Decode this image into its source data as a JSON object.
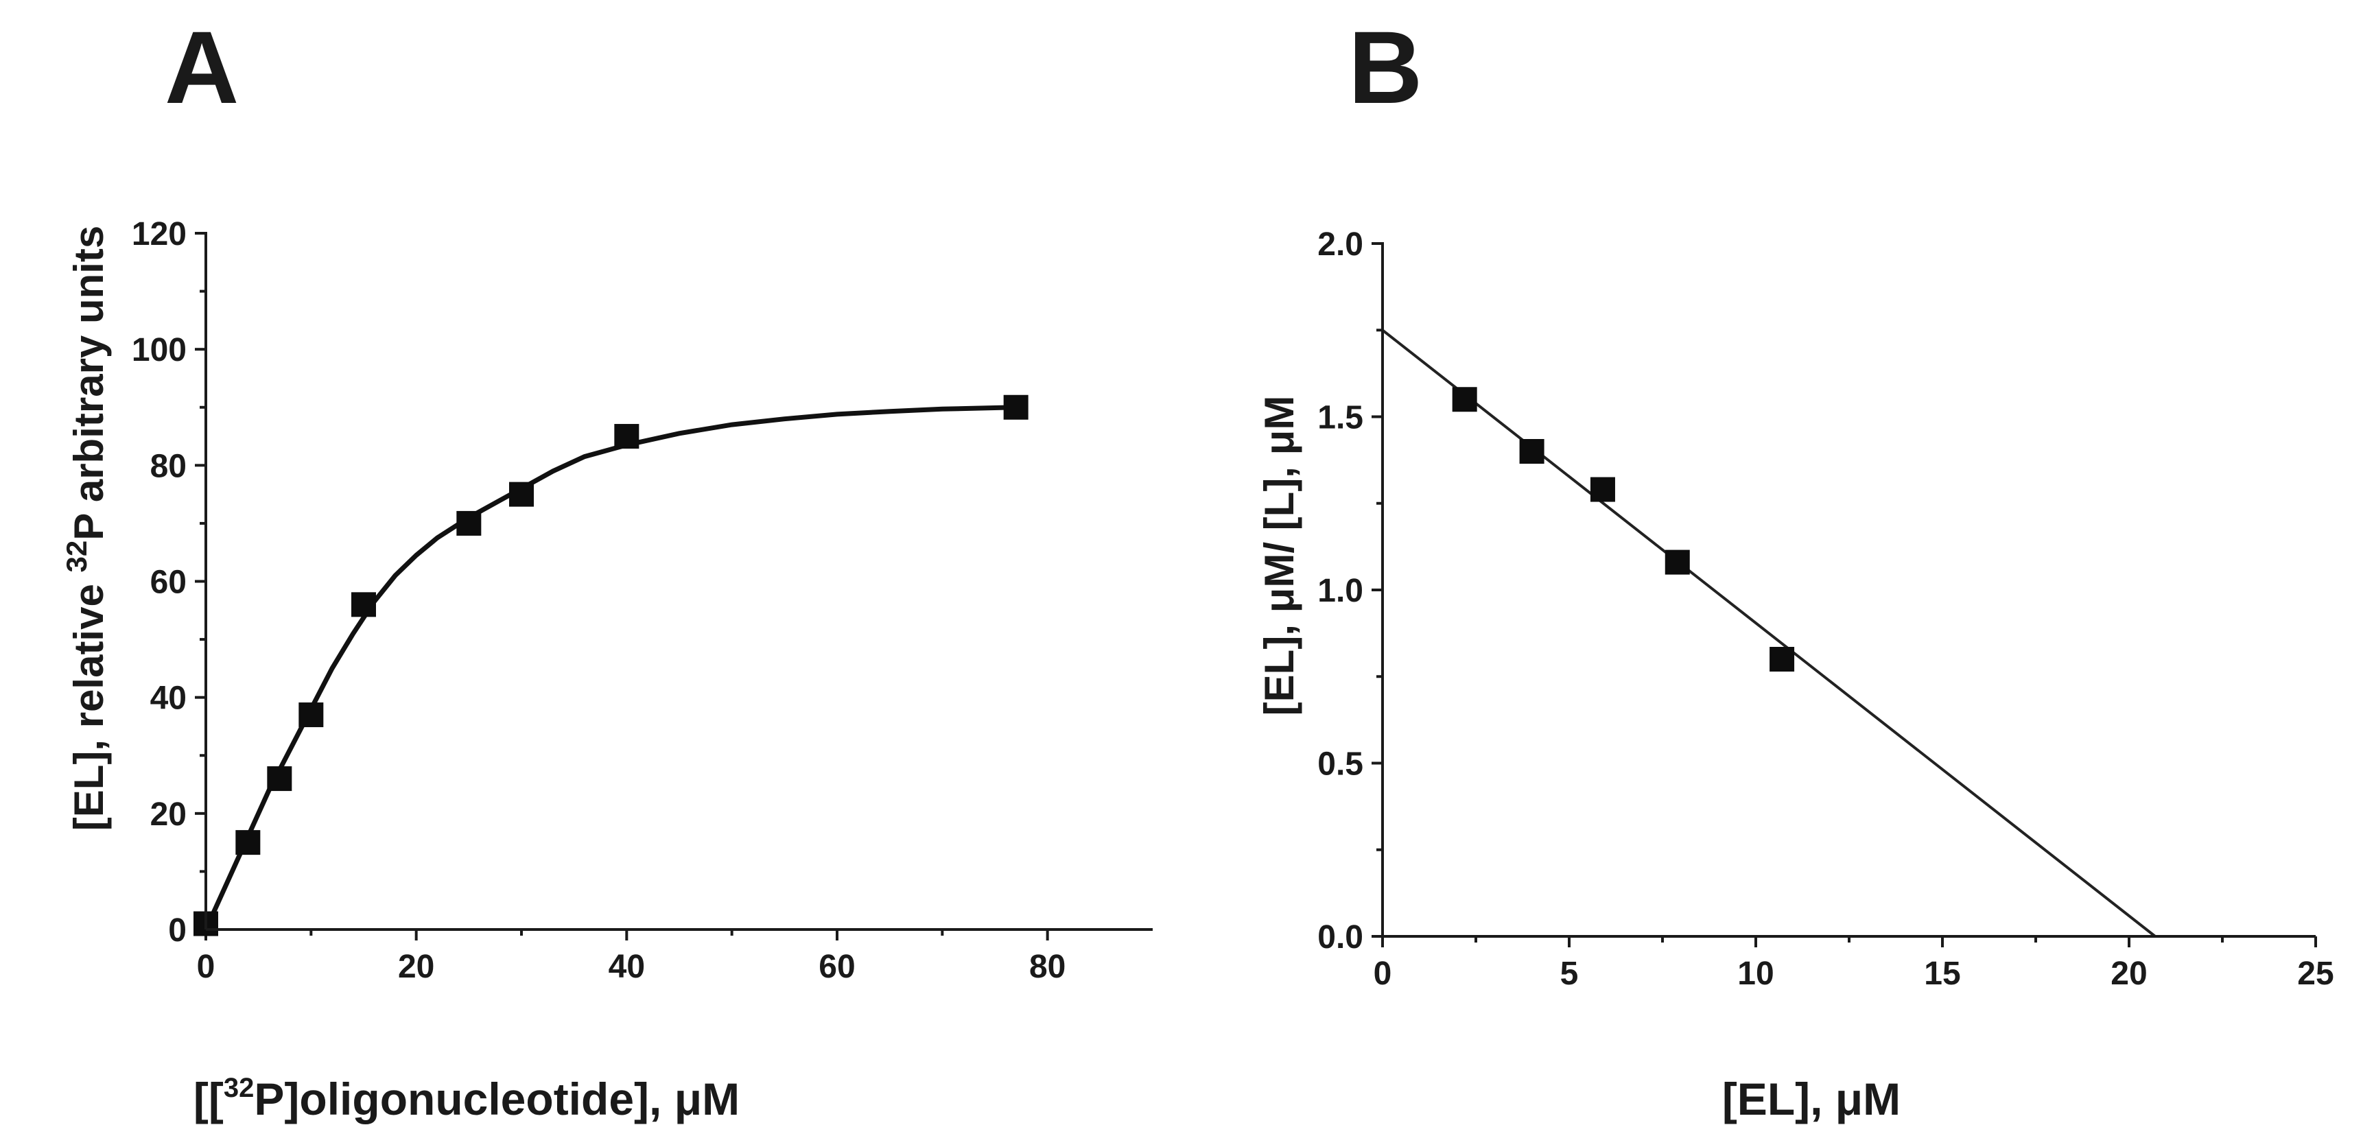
{
  "colors": {
    "ink": "#1a1a1a",
    "marker": "#0d0d0d",
    "background": "#ffffff"
  },
  "chart_data": [
    {
      "panel": "A",
      "type": "scatter",
      "title": "",
      "xlabel": "[[32P]oligonucleotide], μM",
      "xlabel_parts": {
        "pre": "[[",
        "sup": "32",
        "post": "P]oligonucleotide], μM"
      },
      "ylabel": "[EL], relative 32P arbitrary units",
      "ylabel_parts": {
        "pre": "[EL], relative ",
        "sup": "32",
        "post": "P arbitrary units"
      },
      "xlim": [
        0,
        90
      ],
      "ylim": [
        0,
        120
      ],
      "xticks": [
        0,
        20,
        40,
        60,
        80
      ],
      "yticks": [
        0,
        20,
        40,
        60,
        80,
        100,
        120
      ],
      "grid": false,
      "series": [
        {
          "name": "data",
          "marker": "square",
          "x": [
            0,
            4,
            7,
            10,
            15,
            25,
            30,
            40,
            77
          ],
          "y": [
            1,
            15,
            26,
            37,
            56,
            70,
            75,
            85,
            90
          ]
        },
        {
          "name": "saturation fit",
          "type": "line",
          "x": [
            0,
            2,
            4,
            6,
            8,
            10,
            12,
            14,
            16,
            18,
            20,
            22,
            25,
            28,
            30,
            33,
            36,
            40,
            45,
            50,
            55,
            60,
            65,
            70,
            77
          ],
          "y": [
            0,
            8,
            16,
            24,
            31,
            38,
            45,
            51,
            56.5,
            61,
            64.5,
            67.5,
            71,
            74,
            76,
            79,
            81.5,
            83.5,
            85.5,
            87,
            88,
            88.8,
            89.3,
            89.7,
            90
          ]
        }
      ]
    },
    {
      "panel": "B",
      "type": "scatter",
      "title": "",
      "xlabel": "[EL], μM",
      "ylabel": "[EL], μM/ [L], μM",
      "xlim": [
        0,
        25
      ],
      "ylim": [
        0,
        2.0
      ],
      "xticks": [
        0,
        5,
        10,
        15,
        20,
        25
      ],
      "yticks": [
        0.0,
        0.5,
        1.0,
        1.5,
        2.0
      ],
      "ytick_labels": [
        "0.0",
        "0.5",
        "1.0",
        "1.5",
        "2.0"
      ],
      "grid": false,
      "series": [
        {
          "name": "data",
          "marker": "square",
          "x": [
            2.2,
            4.0,
            5.9,
            7.9,
            10.7
          ],
          "y": [
            1.55,
            1.4,
            1.29,
            1.08,
            0.8
          ]
        },
        {
          "name": "linear fit",
          "type": "line",
          "x": [
            0,
            20.7
          ],
          "y": [
            1.75,
            0
          ]
        }
      ]
    }
  ]
}
